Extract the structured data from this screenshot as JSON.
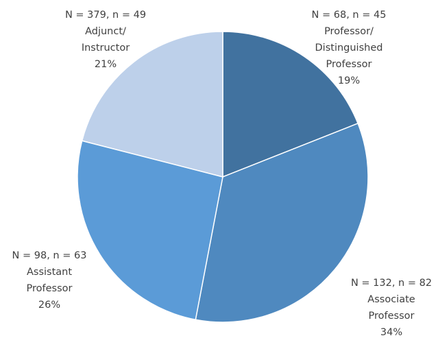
{
  "chart_data": {
    "type": "pie",
    "start_angle_deg": 0,
    "direction": "clockwise",
    "slices": [
      {
        "label_lines": [
          "N = 68, n = 45",
          "Professor/",
          "Distinguished",
          "Professor",
          "19%"
        ],
        "value": 19,
        "color": "#41729F"
      },
      {
        "label_lines": [
          "N = 132, n = 82",
          "Associate",
          "Professor",
          "34%"
        ],
        "value": 34,
        "color": "#4F89BF"
      },
      {
        "label_lines": [
          "N = 98, n = 63",
          "Assistant",
          "Professor",
          "26%"
        ],
        "value": 26,
        "color": "#5B9BD7"
      },
      {
        "label_lines": [
          "N = 379, n = 49",
          "Adjunct/",
          "Instructor",
          "21%"
        ],
        "value": 21,
        "color": "#BDD0EA"
      }
    ]
  }
}
